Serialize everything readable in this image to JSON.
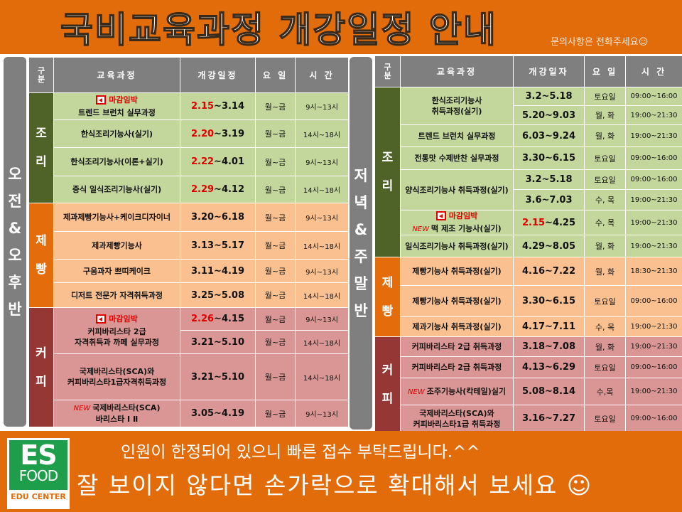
{
  "header": {
    "title": "국비교육과정  개강일정  안내",
    "contact": "문의사항은 전화주세요☺"
  },
  "colors": {
    "accent": "#E36C0A",
    "header_gray": "#7F7F7F",
    "cook_cat": "#4F6228",
    "cook_row": "#C3D69B",
    "bake_cat": "#E46C0A",
    "bake_row": "#FAC090",
    "coffee_cat": "#953735",
    "coffee_row": "#D99694",
    "highlight": "#E00000"
  },
  "badges": {
    "deadline": "마감임박",
    "new": "NEW"
  },
  "left": {
    "side_label": "오전&오후반",
    "columns": [
      "구분",
      "교육과정",
      "개강일정",
      "요 일",
      "시 간"
    ],
    "categories": [
      {
        "name": "조리",
        "key": "cook",
        "courses": [
          {
            "name": "트렌드 브런치 실무과정",
            "deadline": true,
            "sessions": [
              {
                "date_hl": "2.15",
                "date": "~3.14",
                "day": "월~금",
                "time": "9시~13시"
              }
            ]
          },
          {
            "name": "한식조리기능사(실기)",
            "sessions": [
              {
                "date_hl": "2.20",
                "date": "~3.19",
                "day": "월~금",
                "time": "14시~18시"
              }
            ]
          },
          {
            "name": "한식조리기능사(이론+실기)",
            "sessions": [
              {
                "date_hl": "2.22",
                "date": "~4.01",
                "day": "월~금",
                "time": "9시~13시"
              }
            ]
          },
          {
            "name": "중식 일식조리기능사(실기)",
            "sessions": [
              {
                "date_hl": "2.29",
                "date": "~4.12",
                "day": "월~금",
                "time": "14시~18시"
              }
            ]
          }
        ]
      },
      {
        "name": "제빵",
        "key": "bake",
        "courses": [
          {
            "name": "제과제빵기능사+케이크디자이너",
            "sessions": [
              {
                "date": "3.20~6.18",
                "day": "월~금",
                "time": "9시~13시"
              }
            ]
          },
          {
            "name": "제과제빵기능사",
            "sessions": [
              {
                "date": "3.13~5.17",
                "day": "월~금",
                "time": "14시~18시"
              }
            ]
          },
          {
            "name": "구움과자 쁘띠케이크",
            "sessions": [
              {
                "date": "3.11~4.19",
                "day": "월~금",
                "time": "9시~13시"
              }
            ]
          },
          {
            "name": "디저트 전문가 자격취득과정",
            "sessions": [
              {
                "date": "3.25~5.08",
                "day": "월~금",
                "time": "14시~18시"
              }
            ]
          }
        ]
      },
      {
        "name": "커피",
        "key": "coffee",
        "courses": [
          {
            "name": "커피바리스타 2급\n자격취득과 까페 실무과정",
            "deadline": true,
            "sessions": [
              {
                "date_hl": "2.26",
                "date": "~4.15",
                "day": "월~금",
                "time": "9시~13시"
              },
              {
                "date": "3.21~5.10",
                "day": "월~금",
                "time": "14시~18시"
              }
            ]
          },
          {
            "name": "국제바리스타(SCA)와\n커피바리스타1급자격취득과정",
            "sessions": [
              {
                "date": "3.21~5.10",
                "day": "월~금",
                "time": "14시~18시"
              }
            ]
          },
          {
            "name": "국제바리스타(SCA)\n바리스타 Ⅰ Ⅱ",
            "new": true,
            "sessions": [
              {
                "date": "3.05~4.19",
                "day": "월~금",
                "time": "9시~13시"
              }
            ]
          }
        ]
      }
    ]
  },
  "right": {
    "side_label": "저녁&주말반",
    "columns": [
      "구분",
      "교육과정",
      "개강일자",
      "요 일",
      "시 간"
    ],
    "categories": [
      {
        "name": "조리",
        "key": "cook",
        "courses": [
          {
            "name": "한식조리기능사\n취득과정(실기)",
            "sessions": [
              {
                "date": "3.2~5.18",
                "day": "토요일",
                "time": "09:00~16:00"
              },
              {
                "date": "5.20~9.03",
                "day": "월, 화",
                "time": "19:00~21:30"
              }
            ]
          },
          {
            "name": "트렌드 브런치 실무과정",
            "sessions": [
              {
                "date": "6.03~9.24",
                "day": "월, 화",
                "time": "19:00~21:30"
              }
            ]
          },
          {
            "name": "전통맛 수제반찬 실무과정",
            "sessions": [
              {
                "date": "3.30~6.15",
                "day": "토요일",
                "time": "09:00~16:00"
              }
            ]
          },
          {
            "name": "양식조리기능사 취득과정(실기)",
            "sessions": [
              {
                "date": "3.2~5.18",
                "day": "토요일",
                "time": "09:00~16:00"
              },
              {
                "date": "3.6~7.03",
                "day": "수, 목",
                "time": "19:00~21:30"
              }
            ]
          },
          {
            "name": "떡 제조 기능사(실기)",
            "deadline": true,
            "new": true,
            "sessions": [
              {
                "date_hl": "2.15",
                "date": "~4.25",
                "day": "수, 목",
                "time": "19:00~21:30"
              }
            ]
          },
          {
            "name": "일식조리기능사 취득과정(실기)",
            "sessions": [
              {
                "date": "4.29~8.05",
                "day": "월, 화",
                "time": "19:00~21:30"
              }
            ]
          }
        ]
      },
      {
        "name": "제빵",
        "key": "bake",
        "courses": [
          {
            "name": "제빵기능사 취득과정(실기)",
            "sessions": [
              {
                "date": "4.16~7.22",
                "day": "월, 화",
                "time": "18:30~21:30"
              }
            ]
          },
          {
            "name": "제빵기능사 취득과정(실기)",
            "sessions": [
              {
                "date": "3.30~6.15",
                "day": "토요일",
                "time": "09:00~16:00"
              }
            ]
          },
          {
            "name": "제과기능사 취득과정(실기)",
            "sessions": [
              {
                "date": "4.17~7.11",
                "day": "수, 목",
                "time": "19:00~21:30"
              }
            ]
          }
        ]
      },
      {
        "name": "커피",
        "key": "coffee",
        "courses": [
          {
            "name": "커피바리스타 2급 취득과정",
            "sessions": [
              {
                "date": "3.18~7.08",
                "day": "월, 화",
                "time": "19:00~21:30"
              }
            ]
          },
          {
            "name": "커피바리스타 2급 취득과정",
            "sessions": [
              {
                "date": "4.13~6.29",
                "day": "토요일",
                "time": "09:00~16:00"
              }
            ]
          },
          {
            "name": "조주기능사(칵테일)실기",
            "new": true,
            "sessions": [
              {
                "date": "5.08~8.14",
                "day": "수,목",
                "time": "19:00~21:30"
              }
            ]
          },
          {
            "name": "국제바리스타(SCA)와\n커피바리스타1급 취득과정",
            "sessions": [
              {
                "date": "3.16~7.27",
                "day": "토요일",
                "time": "09:00~16:00"
              }
            ]
          }
        ]
      }
    ]
  },
  "footer": {
    "logo_es": "ES",
    "logo_food": "FOOD",
    "logo_edu": "EDU CENTER",
    "notice1": "인원이 한정되어 있으니 빠른 접수 부탁드립니다.^^",
    "notice2": "잘 보이지 않다면 손가락으로 확대해서 보세요 ☺"
  }
}
